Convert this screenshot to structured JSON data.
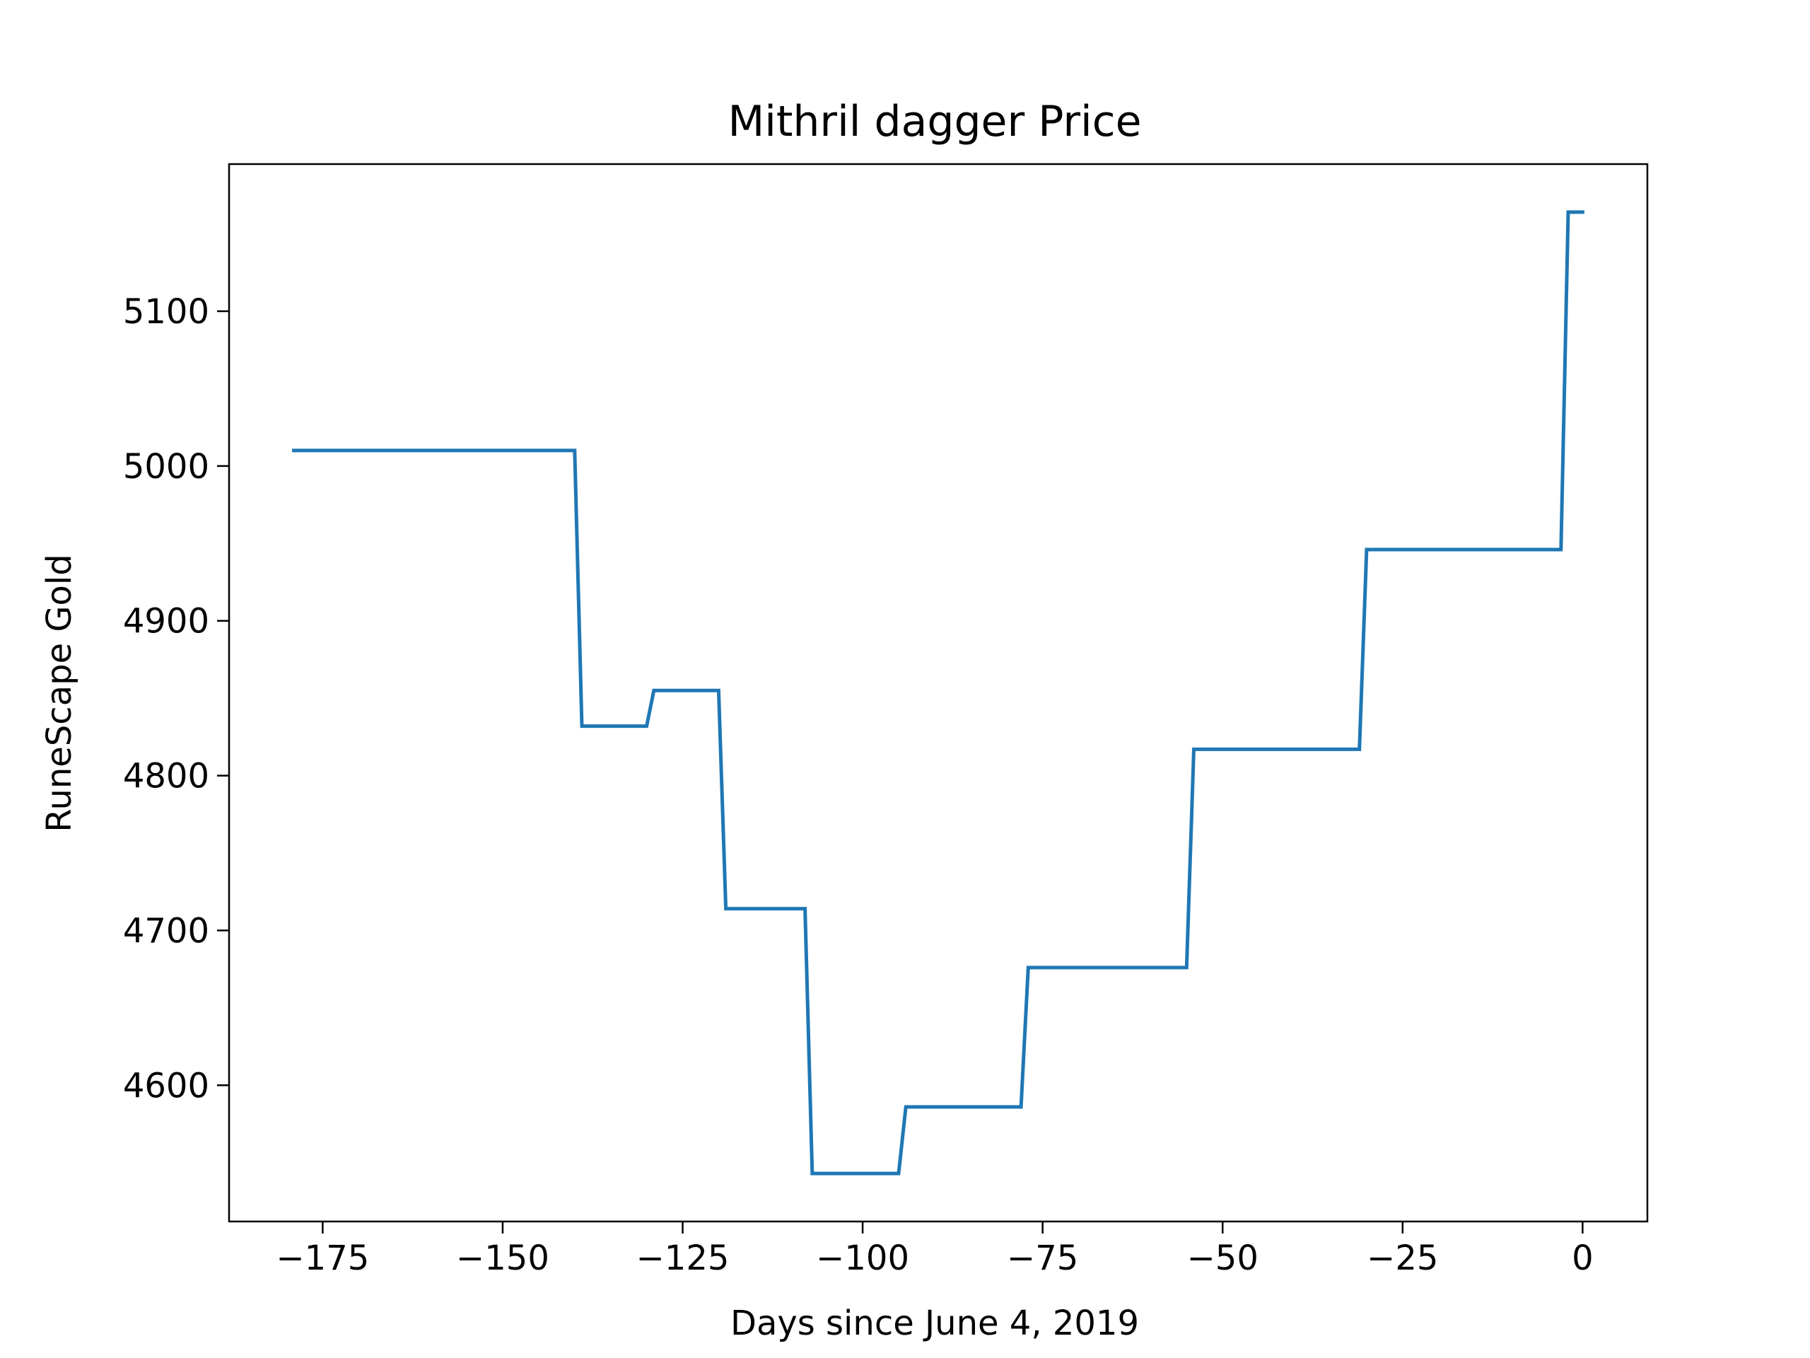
{
  "chart_data": {
    "type": "line",
    "title": "Mithril dagger Price",
    "xlabel": "Days since June 4, 2019",
    "ylabel": "RuneScape Gold",
    "xlim": [
      -188,
      9
    ],
    "ylim": [
      4512,
      5195
    ],
    "xticks": [
      -175,
      -150,
      -125,
      -100,
      -75,
      -50,
      -25,
      0
    ],
    "xtick_labels": [
      "−175",
      "−150",
      "−125",
      "−100",
      "−75",
      "−50",
      "−25",
      "0"
    ],
    "yticks": [
      4600,
      4700,
      4800,
      4900,
      5000,
      5100
    ],
    "ytick_labels": [
      "4600",
      "4700",
      "4800",
      "4900",
      "5000",
      "5100"
    ],
    "grid": false,
    "colors": {
      "series": "#1f77b4",
      "frame": "#000000"
    },
    "series": [
      {
        "x": [
          -179,
          -140,
          -139,
          -130,
          -129,
          -120,
          -119,
          -108,
          -107,
          -95,
          -94,
          -78,
          -77,
          -55,
          -54,
          -31,
          -30,
          -3,
          -2,
          0
        ],
        "y": [
          5010,
          5010,
          4832,
          4832,
          4855,
          4855,
          4714,
          4714,
          4543,
          4543,
          4586,
          4586,
          4676,
          4676,
          4817,
          4817,
          4946,
          4946,
          5164,
          5164
        ]
      }
    ]
  }
}
